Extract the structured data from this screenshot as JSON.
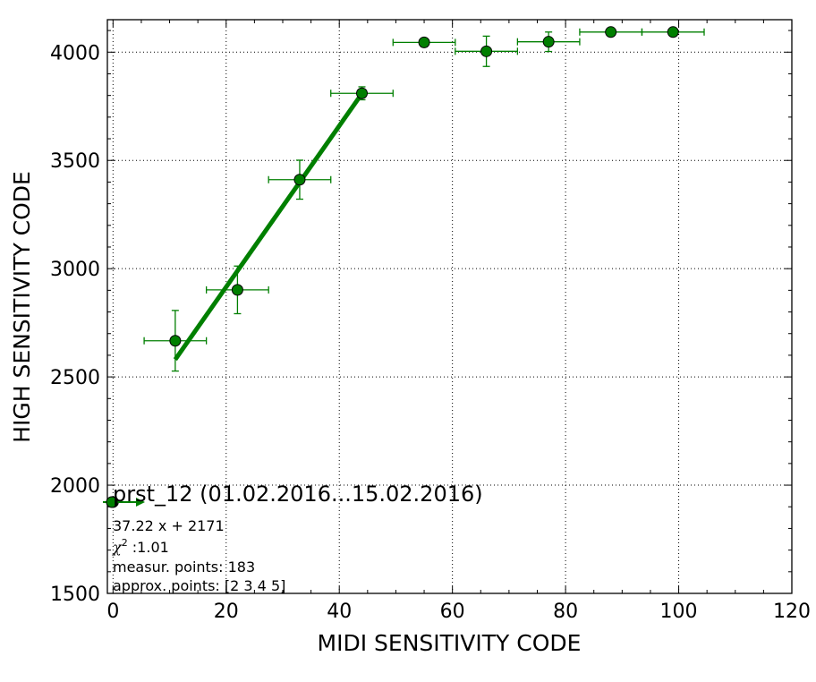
{
  "chart_data": {
    "type": "scatter",
    "title": "",
    "xlabel": "MIDI SENSITIVITY CODE",
    "ylabel": "HIGH SENSITIVITY CODE",
    "xlim": [
      -1,
      120
    ],
    "ylim": [
      1500,
      4150
    ],
    "x_ticks": [
      0,
      20,
      40,
      60,
      80,
      100,
      120
    ],
    "y_ticks": [
      1500,
      2000,
      2500,
      3000,
      3500,
      4000
    ],
    "grid": true,
    "grid_style": "dotted",
    "colors": {
      "series": "#007f00",
      "marker_edge": "#000000"
    },
    "points": [
      {
        "x": 0,
        "y": 1922,
        "xerr": 0,
        "yerr": 0
      },
      {
        "x": 11,
        "y": 2667,
        "xerr": 5.5,
        "yerr": 140
      },
      {
        "x": 22,
        "y": 2902,
        "xerr": 5.5,
        "yerr": 110
      },
      {
        "x": 33,
        "y": 3411,
        "xerr": 5.5,
        "yerr": 90
      },
      {
        "x": 44,
        "y": 3810,
        "xerr": 5.5,
        "yerr": 30
      },
      {
        "x": 55,
        "y": 4045,
        "xerr": 5.5,
        "yerr": 20
      },
      {
        "x": 66,
        "y": 4004,
        "xerr": 5.5,
        "yerr": 70
      },
      {
        "x": 77,
        "y": 4048,
        "xerr": 5.5,
        "yerr": 45
      },
      {
        "x": 88,
        "y": 4093,
        "xerr": 5.5,
        "yerr": 5
      },
      {
        "x": 99,
        "y": 4093,
        "xerr": 5.5,
        "yerr": 5
      }
    ],
    "fit": {
      "slope": 37.22,
      "intercept": 2171,
      "x_range": [
        11,
        44
      ]
    },
    "legend": {
      "title": "prst_12 (01.02.2016...15.02.2016)",
      "equation": "37.22 x + 2171",
      "chi2_label": "χ",
      "chi2_sup": "2",
      "chi2_value": " :1.01",
      "measur_points": "measur. points: 183",
      "approx_points": "approx. points: [2 3 4 5]",
      "placement": "lower-left"
    }
  }
}
